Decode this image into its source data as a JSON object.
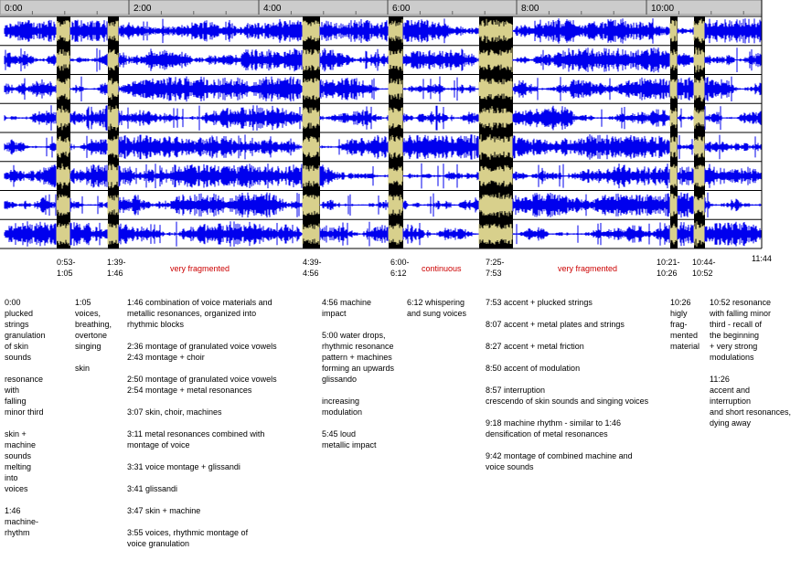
{
  "ruler": {
    "ticks": [
      "0:00",
      "2:00",
      "4:00",
      "6:00",
      "8:00",
      "10:00"
    ]
  },
  "regions": [
    {
      "start": "0:53-",
      "end": "1:05"
    },
    {
      "start": "1:39-",
      "end": "1:46"
    },
    {
      "start": "4:39-",
      "end": "4:56"
    },
    {
      "start": "6:00-",
      "end": "6:12"
    },
    {
      "start": "7:25-",
      "end": "7:53"
    },
    {
      "start": "10:21-",
      "end": "10:26"
    },
    {
      "start": "10:44-",
      "end": "10:52"
    }
  ],
  "annotations": [
    "very fragmented",
    "continuous",
    "very fragmented"
  ],
  "end_time": "11:44",
  "columns": [
    [
      [
        "0:00",
        "plucked",
        "strings",
        "granulation",
        "of skin",
        "sounds"
      ],
      [
        "resonance",
        "with",
        "falling",
        "minor third"
      ],
      [
        "skin +",
        "machine",
        "sounds",
        "melting",
        "into",
        "voices"
      ],
      [
        "1:46",
        "machine-",
        "rhythm"
      ]
    ],
    [
      [
        "1:05",
        "voices,",
        "breathing,",
        "overtone",
        "singing"
      ],
      [
        "skin"
      ]
    ],
    [
      [
        "1:46 combination of voice materials and",
        "metallic resonances, organized into",
        "rhythmic blocks"
      ],
      [
        "2:36 montage of granulated voice vowels",
        "2:43 montage + choir"
      ],
      [
        "2:50 montage of granulated voice vowels",
        "2:54 montage + metal resonances"
      ],
      [
        "3:07 skin, choir, machines"
      ],
      [
        "3:11 metal resonances combined with",
        "montage of voice"
      ],
      [
        "3:31 voice montage + glissandi"
      ],
      [
        "3:41 glissandi"
      ],
      [
        "3:47 skin + machine"
      ],
      [
        "3:55 voices, rhythmic montage of",
        "voice granulation"
      ]
    ],
    [
      [
        "4:56 machine",
        "impact"
      ],
      [
        "5:00 water drops,",
        "rhythmic resonance",
        "pattern +  machines",
        "forming an upwards",
        "glissando"
      ],
      [
        "increasing",
        "modulation"
      ],
      [
        "5:45 loud",
        "metallic impact"
      ]
    ],
    [
      [
        "6:12 whispering",
        "and sung voices"
      ]
    ],
    [
      [
        "7:53 accent + plucked strings"
      ],
      [
        "8:07 accent + metal plates and strings"
      ],
      [
        "8:27 accent + metal friction"
      ],
      [
        "8:50 accent of modulation"
      ],
      [
        "8:57 interruption",
        "crescendo of skin sounds and singing voices"
      ],
      [
        "9:18 machine rhythm - similar to 1:46",
        "densification of metal resonances"
      ],
      [
        "9:42 montage of combined machine and",
        "voice sounds"
      ]
    ],
    [
      [
        "10:26",
        "higly",
        "frag-",
        "mented",
        "material"
      ]
    ],
    [
      [
        "10:52 resonance",
        "with falling minor",
        "third - recall of",
        "the beginning",
        "+ very strong",
        "modulations"
      ],
      [
        "11:26",
        "accent and",
        "interruption",
        "and short resonances,",
        "dying away"
      ]
    ]
  ]
}
